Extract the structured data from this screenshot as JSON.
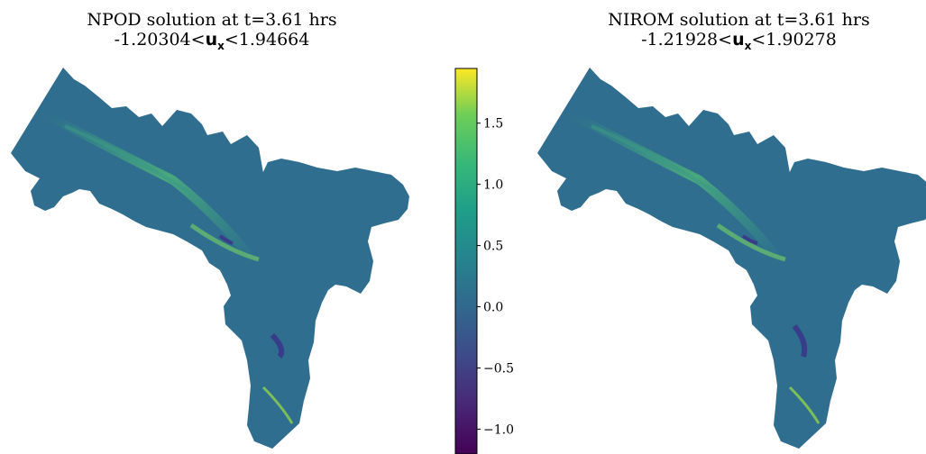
{
  "chart_data": [
    {
      "type": "heatmap",
      "title_line1": "NPOD solution at t=3.61 hrs",
      "range_min": "-1.20304",
      "range_max": "1.94664",
      "variable": "u",
      "variable_sub": "x"
    },
    {
      "type": "heatmap",
      "title_line1": "NIROM solution at t=3.61 hrs",
      "range_min": "-1.21928",
      "range_max": "1.90278",
      "variable": "u",
      "variable_sub": "x"
    }
  ],
  "colorbar": {
    "colormap": "viridis",
    "vmin": -1.20304,
    "vmax": 1.94664,
    "ticks": [
      {
        "value": 1.5,
        "label": "1.5"
      },
      {
        "value": 1.0,
        "label": "1.0"
      },
      {
        "value": 0.5,
        "label": "0.5"
      },
      {
        "value": 0.0,
        "label": "0.0"
      },
      {
        "value": -0.5,
        "label": "−0.5"
      },
      {
        "value": -1.0,
        "label": "−1.0"
      }
    ]
  },
  "colors": {
    "domain_base": "#2f6e8e",
    "low": "#3a3188",
    "high": "#5ec962"
  }
}
